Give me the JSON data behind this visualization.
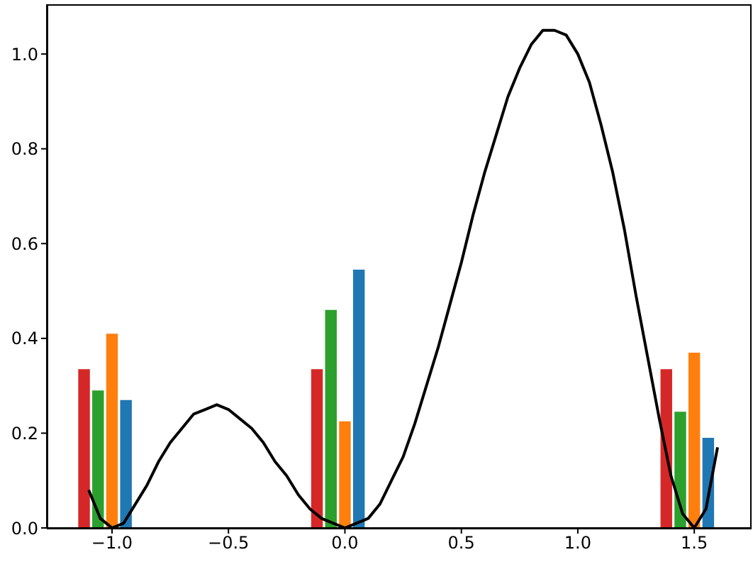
{
  "chart_data": {
    "type": "bar",
    "xlim": [
      -1.28,
      1.74
    ],
    "ylim": [
      0,
      1.105
    ],
    "xticks": [
      {
        "value": -1,
        "label": "−1.0"
      },
      {
        "value": -0.5,
        "label": "−0.5"
      },
      {
        "value": 0,
        "label": "0.0"
      },
      {
        "value": 0.5,
        "label": "0.5"
      },
      {
        "value": 1,
        "label": "1.0"
      },
      {
        "value": 1.5,
        "label": "1.5"
      }
    ],
    "yticks": [
      {
        "value": 0,
        "label": "0.0"
      },
      {
        "value": 0.2,
        "label": "0.2"
      },
      {
        "value": 0.4,
        "label": "0.4"
      },
      {
        "value": 0.6,
        "label": "0.6"
      },
      {
        "value": 0.8,
        "label": "0.8"
      },
      {
        "value": 1,
        "label": "1.0"
      }
    ],
    "series": [
      {
        "color": "#d62728",
        "x": [
          -1.12,
          -0.12,
          1.38
        ],
        "values": [
          0.335,
          0.335,
          0.335
        ]
      },
      {
        "color": "#2ca02c",
        "x": [
          -1.06,
          -0.06,
          1.44
        ],
        "values": [
          0.29,
          0.46,
          0.245
        ]
      },
      {
        "color": "#ff7f0e",
        "x": [
          -1.0,
          0.0,
          1.5
        ],
        "values": [
          0.41,
          0.225,
          0.37
        ]
      },
      {
        "color": "#1f77b4",
        "x": [
          -0.94,
          0.06,
          1.56
        ],
        "values": [
          0.27,
          0.545,
          0.19
        ]
      },
      {
        "type": "line",
        "color": "#000000",
        "x": [
          -1.1,
          -1.05,
          -1.0,
          -0.95,
          -0.9,
          -0.85,
          -0.8,
          -0.75,
          -0.7,
          -0.65,
          -0.6,
          -0.55,
          -0.5,
          -0.45,
          -0.4,
          -0.35,
          -0.3,
          -0.25,
          -0.2,
          -0.15,
          -0.1,
          -0.05,
          0,
          0.05,
          0.1,
          0.15,
          0.2,
          0.25,
          0.3,
          0.35,
          0.4,
          0.45,
          0.5,
          0.55,
          0.6,
          0.65,
          0.7,
          0.75,
          0.8,
          0.85,
          0.9,
          0.95,
          1.0,
          1.05,
          1.1,
          1.15,
          1.2,
          1.25,
          1.3,
          1.35,
          1.4,
          1.45,
          1.5,
          1.55,
          1.6
        ],
        "values": [
          0.08,
          0.02,
          0,
          0.01,
          0.05,
          0.09,
          0.14,
          0.18,
          0.21,
          0.24,
          0.25,
          0.26,
          0.25,
          0.23,
          0.21,
          0.18,
          0.14,
          0.11,
          0.07,
          0.04,
          0.02,
          0.01,
          0,
          0.01,
          0.02,
          0.05,
          0.1,
          0.15,
          0.22,
          0.3,
          0.38,
          0.47,
          0.56,
          0.66,
          0.75,
          0.83,
          0.91,
          0.97,
          1.02,
          1.05,
          1.05,
          1.04,
          1.0,
          0.94,
          0.85,
          0.75,
          0.63,
          0.49,
          0.36,
          0.23,
          0.11,
          0.03,
          0,
          0.04,
          0.17
        ]
      }
    ]
  }
}
